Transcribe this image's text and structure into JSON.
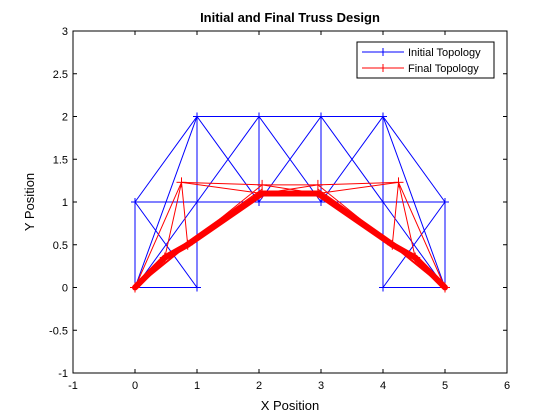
{
  "chart_data": {
    "type": "line",
    "title": "Initial and Final Truss Design",
    "xlabel": "X Position",
    "ylabel": "Y Position",
    "xlim": [
      -1,
      6
    ],
    "ylim": [
      -1,
      3
    ],
    "xticks": [
      "-1",
      "0",
      "1",
      "2",
      "3",
      "4",
      "5",
      "6"
    ],
    "yticks": [
      "-1",
      "-0.5",
      "0",
      "0.5",
      "1",
      "1.5",
      "2",
      "2.5",
      "3"
    ],
    "grid": false,
    "legend_position": "top-right",
    "series": [
      {
        "name": "Initial Topology",
        "color": "#0000ff",
        "marker": "+",
        "nodes": [
          [
            0,
            0
          ],
          [
            1,
            0
          ],
          [
            0,
            1
          ],
          [
            1,
            1
          ],
          [
            1,
            2
          ],
          [
            2,
            2
          ],
          [
            3,
            2
          ],
          [
            4,
            2
          ],
          [
            2,
            1
          ],
          [
            3,
            1
          ],
          [
            4,
            1
          ],
          [
            4,
            0
          ],
          [
            5,
            0
          ],
          [
            5,
            1
          ]
        ],
        "members": [
          [
            0,
            0,
            1,
            0
          ],
          [
            0,
            0,
            0,
            1
          ],
          [
            0,
            0,
            1,
            1
          ],
          [
            0,
            0,
            1,
            2
          ],
          [
            1,
            0,
            1,
            1
          ],
          [
            1,
            0,
            0,
            1
          ],
          [
            1,
            0,
            1,
            2
          ],
          [
            0,
            1,
            1,
            1
          ],
          [
            0,
            1,
            1,
            2
          ],
          [
            1,
            1,
            1,
            2
          ],
          [
            1,
            2,
            2,
            2
          ],
          [
            1,
            1,
            2,
            1
          ],
          [
            1,
            1,
            2,
            2
          ],
          [
            1,
            2,
            2,
            1
          ],
          [
            2,
            2,
            2,
            1
          ],
          [
            2,
            2,
            3,
            2
          ],
          [
            2,
            1,
            3,
            1
          ],
          [
            2,
            1,
            3,
            2
          ],
          [
            2,
            2,
            3,
            1
          ],
          [
            3,
            2,
            3,
            1
          ],
          [
            3,
            2,
            4,
            2
          ],
          [
            3,
            1,
            4,
            1
          ],
          [
            3,
            1,
            4,
            2
          ],
          [
            3,
            2,
            4,
            1
          ],
          [
            4,
            2,
            4,
            1
          ],
          [
            4,
            2,
            5,
            1
          ],
          [
            4,
            2,
            5,
            0
          ],
          [
            4,
            2,
            4,
            0
          ],
          [
            4,
            1,
            5,
            1
          ],
          [
            4,
            1,
            5,
            0
          ],
          [
            4,
            1,
            4,
            0
          ],
          [
            4,
            0,
            5,
            0
          ],
          [
            4,
            0,
            5,
            1
          ],
          [
            5,
            1,
            5,
            0
          ]
        ]
      },
      {
        "name": "Final Topology",
        "color": "#ff0000",
        "marker": "+",
        "members": [
          [
            0,
            0,
            0.48,
            0.35,
            6
          ],
          [
            0.48,
            0.35,
            0.85,
            0.5,
            6
          ],
          [
            0.85,
            0.5,
            2.05,
            1.1,
            6
          ],
          [
            2.05,
            1.1,
            2.95,
            1.1,
            6
          ],
          [
            2.95,
            1.1,
            4.15,
            0.5,
            6
          ],
          [
            4.15,
            0.5,
            4.52,
            0.35,
            6
          ],
          [
            4.52,
            0.35,
            5,
            0,
            6
          ],
          [
            0,
            0,
            0.75,
            1.23,
            1
          ],
          [
            0.75,
            1.23,
            0.48,
            0.35,
            1
          ],
          [
            0.75,
            1.23,
            0.85,
            0.5,
            1
          ],
          [
            0.75,
            1.23,
            2.05,
            1.2,
            1
          ],
          [
            0.75,
            1.23,
            2.05,
            1.1,
            1
          ],
          [
            0.85,
            0.5,
            2.05,
            1.2,
            1
          ],
          [
            0.48,
            0.35,
            2.05,
            1.15,
            1
          ],
          [
            2.05,
            1.2,
            2.95,
            1.2,
            1
          ],
          [
            2.05,
            1.2,
            2.95,
            1.1,
            1
          ],
          [
            2.05,
            1.1,
            2.95,
            1.2,
            1
          ],
          [
            2.95,
            1.2,
            4.25,
            1.23,
            1
          ],
          [
            2.95,
            1.1,
            4.25,
            1.23,
            1
          ],
          [
            2.95,
            1.2,
            4.15,
            0.5,
            1
          ],
          [
            2.95,
            1.15,
            4.52,
            0.35,
            1
          ],
          [
            4.25,
            1.23,
            4.15,
            0.5,
            1
          ],
          [
            4.25,
            1.23,
            4.52,
            0.35,
            1
          ],
          [
            4.25,
            1.23,
            5,
            0,
            1
          ],
          [
            0,
            0,
            0.85,
            0.5,
            2
          ],
          [
            4.15,
            0.5,
            5,
            0,
            2
          ]
        ],
        "nodes": [
          [
            0,
            0
          ],
          [
            0.48,
            0.35
          ],
          [
            0.85,
            0.5
          ],
          [
            0.75,
            1.23
          ],
          [
            2.05,
            1.1
          ],
          [
            2.05,
            1.2
          ],
          [
            2.95,
            1.1
          ],
          [
            2.95,
            1.2
          ],
          [
            4.15,
            0.5
          ],
          [
            4.52,
            0.35
          ],
          [
            4.25,
            1.23
          ],
          [
            5,
            0
          ]
        ]
      }
    ]
  }
}
